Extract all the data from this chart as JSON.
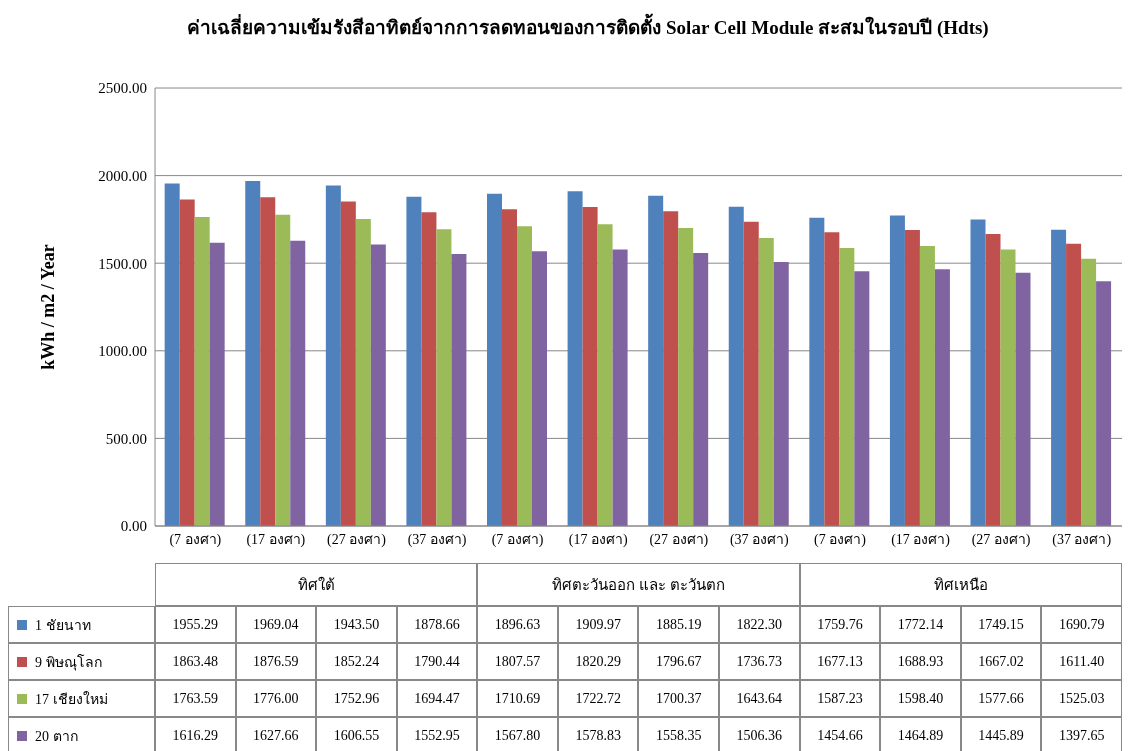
{
  "chart_data": {
    "type": "bar",
    "title": "ค่าเฉลี่ยความเข้มรังสีอาทิตย์จากการลดทอนของการติดตั้ง Solar Cell Module สะสมในรอบปี (Hdts)",
    "ylabel": "kWh / m2 / Year",
    "categories": [
      "(7 องศา)",
      "(17 องศา)",
      "(27 องศา)",
      "(37 องศา)",
      "(7 องศา)",
      "(17 องศา)",
      "(27 องศา)",
      "(37 องศา)",
      "(7 องศา)",
      "(17 องศา)",
      "(27 องศา)",
      "(37 องศา)"
    ],
    "annotations": [
      "ทิศใต้",
      "ทิศตะวันออก และ ตะวันตก",
      "ทิศเหนือ"
    ],
    "series": [
      {
        "name": "1 ชัยนาท",
        "color": "#4f81bd",
        "values": [
          1955.29,
          1969.04,
          1943.5,
          1878.66,
          1896.63,
          1909.97,
          1885.19,
          1822.3,
          1759.76,
          1772.14,
          1749.15,
          1690.79
        ],
        "value_labels": [
          "1955.29",
          "1969.04",
          "1943.50",
          "1878.66",
          "1896.63",
          "1909.97",
          "1885.19",
          "1822.30",
          "1759.76",
          "1772.14",
          "1749.15",
          "1690.79"
        ]
      },
      {
        "name": "9 พิษณุโลก",
        "color": "#c0504d",
        "values": [
          1863.48,
          1876.59,
          1852.24,
          1790.44,
          1807.57,
          1820.29,
          1796.67,
          1736.73,
          1677.13,
          1688.93,
          1667.02,
          1611.4
        ],
        "value_labels": [
          "1863.48",
          "1876.59",
          "1852.24",
          "1790.44",
          "1807.57",
          "1820.29",
          "1796.67",
          "1736.73",
          "1677.13",
          "1688.93",
          "1667.02",
          "1611.40"
        ]
      },
      {
        "name": "17 เชียงใหม่",
        "color": "#9bbb59",
        "values": [
          1763.59,
          1776.0,
          1752.96,
          1694.47,
          1710.69,
          1722.72,
          1700.37,
          1643.64,
          1587.23,
          1598.4,
          1577.66,
          1525.03
        ],
        "value_labels": [
          "1763.59",
          "1776.00",
          "1752.96",
          "1694.47",
          "1710.69",
          "1722.72",
          "1700.37",
          "1643.64",
          "1587.23",
          "1598.40",
          "1577.66",
          "1525.03"
        ]
      },
      {
        "name": "20  ตาก",
        "color": "#8064a2",
        "values": [
          1616.29,
          1627.66,
          1606.55,
          1552.95,
          1567.8,
          1578.83,
          1558.35,
          1506.36,
          1454.66,
          1464.89,
          1445.89,
          1397.65
        ],
        "value_labels": [
          "1616.29",
          "1627.66",
          "1606.55",
          "1552.95",
          "1567.80",
          "1578.83",
          "1558.35",
          "1506.36",
          "1454.66",
          "1464.89",
          "1445.89",
          "1397.65"
        ]
      }
    ],
    "ylim": [
      0,
      2500
    ],
    "yticks": [
      {
        "value": 0,
        "label": "0.00"
      },
      {
        "value": 500,
        "label": "500.00"
      },
      {
        "value": 1000,
        "label": "1000.00"
      },
      {
        "value": 1500,
        "label": "1500.00"
      },
      {
        "value": 2000,
        "label": "2000.00"
      },
      {
        "value": 2500,
        "label": "2500.00"
      }
    ],
    "grid": "y",
    "legend": "bottom"
  }
}
